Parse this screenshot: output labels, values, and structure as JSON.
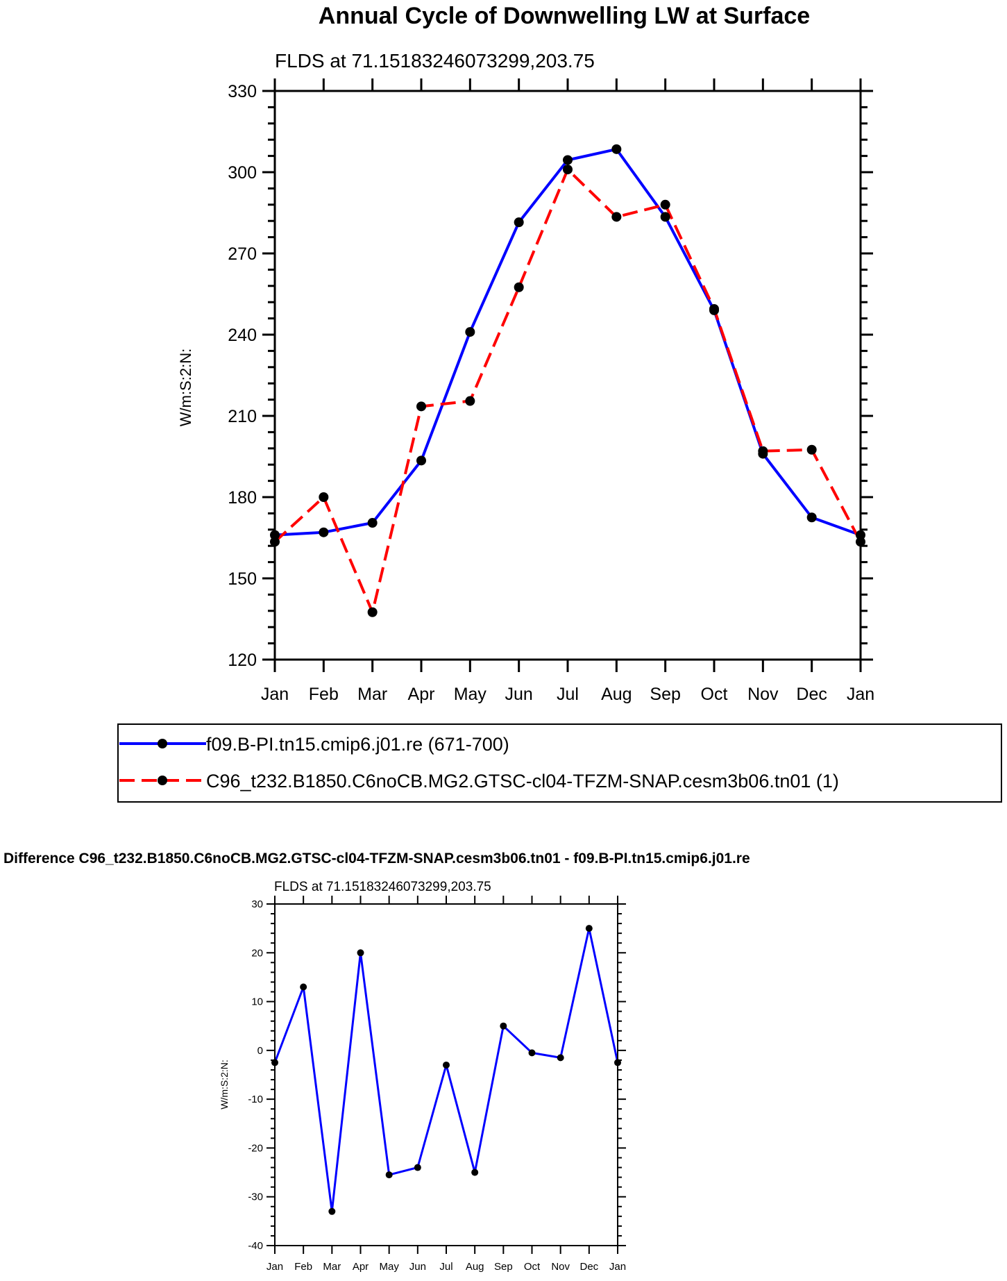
{
  "chart_data": [
    {
      "type": "line",
      "title": "Annual Cycle of Downwelling LW at Surface",
      "subtitle": "FLDS at 71.15183246073299,203.75",
      "xlabel": "",
      "ylabel": "W/m:S:2:N:",
      "categories": [
        "Jan",
        "Feb",
        "Mar",
        "Apr",
        "May",
        "Jun",
        "Jul",
        "Aug",
        "Sep",
        "Oct",
        "Nov",
        "Dec",
        "Jan"
      ],
      "ylim": [
        120,
        330
      ],
      "yticks": [
        "120",
        "150",
        "180",
        "210",
        "240",
        "270",
        "300",
        "330"
      ],
      "legend_position": "bottom",
      "series": [
        {
          "name": "f09.B-PI.tn15.cmip6.j01.re (671-700)",
          "color": "#0000ff",
          "style": "solid",
          "values": [
            166,
            167,
            170.5,
            193.5,
            241,
            281.5,
            304.5,
            308.5,
            283.5,
            249,
            196,
            172.5,
            166
          ]
        },
        {
          "name": "C96_t232.B1850.C6noCB.MG2.GTSC-cl04-TFZM-SNAP.cesm3b06.tn01 (1)",
          "color": "#ff0000",
          "style": "dashed",
          "values": [
            163.5,
            180,
            137.5,
            213.5,
            215.5,
            257.5,
            301,
            283.5,
            288,
            249.5,
            197,
            197.5,
            163.5
          ]
        }
      ]
    },
    {
      "type": "line",
      "title": "Difference C96_t232.B1850.C6noCB.MG2.GTSC-cl04-TFZM-SNAP.cesm3b06.tn01 - f09.B-PI.tn15.cmip6.j01.re",
      "subtitle": "FLDS at 71.15183246073299,203.75",
      "xlabel": "",
      "ylabel": "W/m:S:2:N:",
      "categories": [
        "Jan",
        "Feb",
        "Mar",
        "Apr",
        "May",
        "Jun",
        "Jul",
        "Aug",
        "Sep",
        "Oct",
        "Nov",
        "Dec",
        "Jan"
      ],
      "ylim": [
        -40,
        30
      ],
      "yticks": [
        "-40",
        "-30",
        "-20",
        "-10",
        "0",
        "10",
        "20",
        "30"
      ],
      "series": [
        {
          "name": "difference",
          "color": "#0000ff",
          "style": "solid",
          "values": [
            -2.5,
            13,
            -33,
            20,
            -25.5,
            -24,
            -3,
            -25,
            5,
            -0.5,
            -1.5,
            25,
            -2.5
          ]
        }
      ]
    }
  ]
}
